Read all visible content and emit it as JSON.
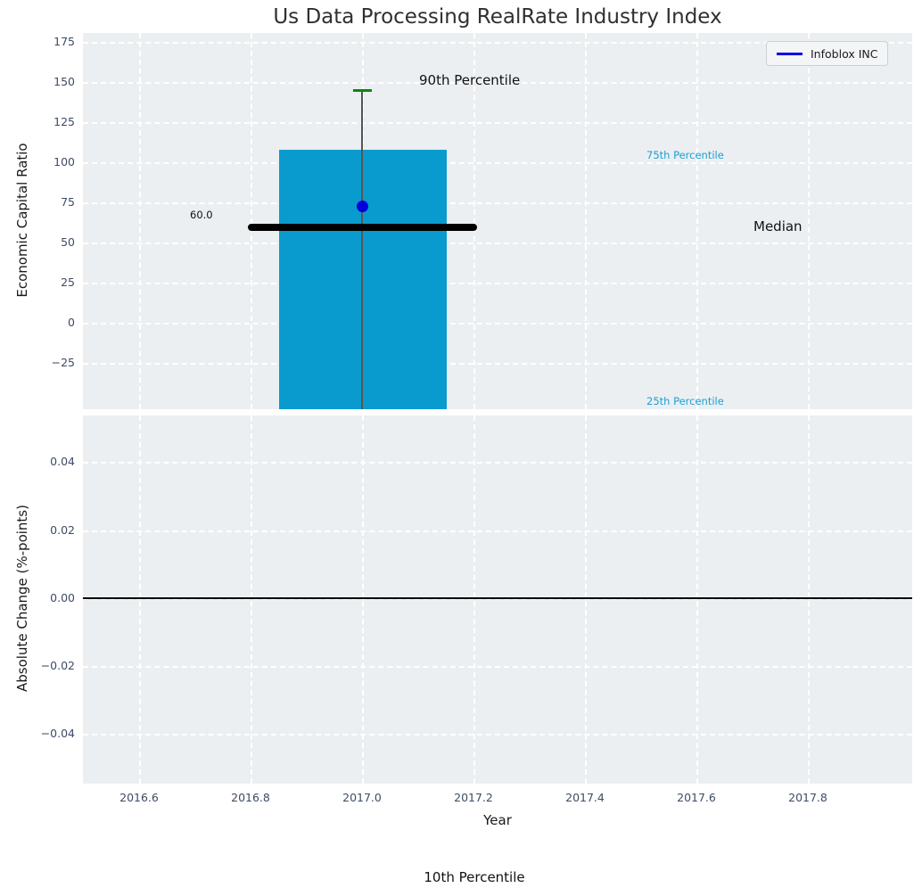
{
  "title": "Us Data Processing RealRate Industry Index",
  "legend": {
    "label": "Infoblox INC",
    "position": "upper right"
  },
  "annotations": {
    "p90": "90th Percentile",
    "p75": "75th Percentile",
    "median_label": "Median",
    "median_value": "60.0",
    "p25": "25th Percentile",
    "p10": "10th Percentile"
  },
  "axes": {
    "top": {
      "ylabel": "Economic Capital Ratio",
      "yticks": [
        "175",
        "150",
        "125",
        "100",
        "75",
        "50",
        "25",
        "0",
        "−25"
      ]
    },
    "bottom": {
      "ylabel": "Absolute Change (%-points)",
      "yticks": [
        "0.04",
        "0.02",
        "0.00",
        "−0.02",
        "−0.04"
      ],
      "xlabel": "Year",
      "xticks": [
        "2016.6",
        "2016.8",
        "2017.0",
        "2017.2",
        "2017.4",
        "2017.6",
        "2017.8"
      ]
    }
  },
  "colors": {
    "bar": "#099bce",
    "marker": "#0000dd",
    "legend_line": "#0000e6",
    "cap_90": "#0e870e",
    "median_line": "#000000",
    "percentile_text": "#1b9fd4",
    "panel_bg": "#eceff1",
    "tick_text": "#3d4c63",
    "grid": "#ffffff"
  },
  "chart_data": [
    {
      "type": "bar",
      "subplot": "top",
      "title": "Us Data Processing RealRate Industry Index",
      "xlabel": "Year",
      "ylabel": "Economic Capital Ratio",
      "xlim": [
        2016.5,
        2017.98
      ],
      "ylim": [
        -55,
        180
      ],
      "yticks": [
        175,
        150,
        125,
        100,
        75,
        50,
        25,
        0,
        -25
      ],
      "xticks": [
        2016.6,
        2016.8,
        2017.0,
        2017.2,
        2017.4,
        2017.6,
        2017.8
      ],
      "grid": true,
      "legend_entries": [
        "Infoblox INC"
      ],
      "bar": {
        "x": 2017.0,
        "width_years": 0.3,
        "top_value_75th_percentile": 105,
        "bottom_value_25th_percentile": "below visible axis (bar clipped at plot bottom)"
      },
      "whisker": {
        "x": 2017.0,
        "cap_90th_percentile": 142,
        "cap_10th_percentile": "below visible axis (label shown beneath figure)"
      },
      "median": {
        "value": 60.0,
        "label": "60.0",
        "x_span": [
          2016.8,
          2017.2
        ]
      },
      "series": [
        {
          "name": "Infoblox INC",
          "type": "scatter",
          "x": [
            2017.0
          ],
          "values": [
            72
          ]
        }
      ]
    },
    {
      "type": "line",
      "subplot": "bottom",
      "xlabel": "Year",
      "ylabel": "Absolute Change (%-points)",
      "xlim": [
        2016.5,
        2017.98
      ],
      "ylim": [
        -0.055,
        0.055
      ],
      "yticks": [
        0.04,
        0.02,
        0.0,
        -0.02,
        -0.04
      ],
      "xticks": [
        2016.6,
        2016.8,
        2017.0,
        2017.2,
        2017.4,
        2017.6,
        2017.8
      ],
      "grid": true,
      "zero_line": {
        "y": 0.0,
        "color": "#000000"
      },
      "series": []
    }
  ]
}
